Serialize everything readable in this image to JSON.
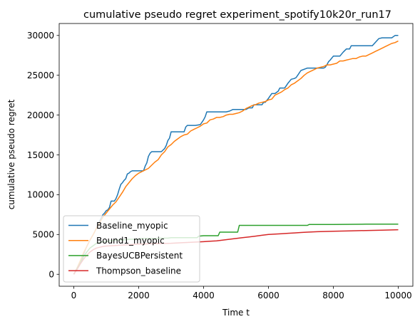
{
  "chart_data": {
    "type": "line",
    "title": "cumulative pseudo regret experiment_spotify10k20r_run17",
    "xlabel": "Time t",
    "ylabel": "cumulative pseudo regret",
    "xlim": [
      -450,
      10450
    ],
    "ylim": [
      -1500,
      31500
    ],
    "xticks": [
      0,
      2000,
      4000,
      6000,
      8000,
      10000
    ],
    "yticks": [
      0,
      5000,
      10000,
      15000,
      20000,
      25000,
      30000
    ],
    "grid": false,
    "legend_position": "lower-left",
    "series": [
      {
        "name": "Baseline_myopic",
        "color": "#1f77b4",
        "x": [
          0,
          100,
          200,
          300,
          400,
          500,
          600,
          700,
          800,
          900,
          950,
          1000,
          1050,
          1100,
          1150,
          1200,
          1250,
          1300,
          1350,
          1400,
          1450,
          1500,
          1550,
          1600,
          1650,
          1700,
          1750,
          1800,
          1850,
          1900,
          1950,
          2000,
          2050,
          2100,
          2150,
          2200,
          2250,
          2300,
          2350,
          2400,
          2450,
          2500,
          2600,
          2700,
          2800,
          2850,
          2900,
          2950,
          3000,
          3400,
          3450,
          3500,
          3700,
          3750,
          3900,
          3950,
          4000,
          4050,
          4100,
          4200,
          4300,
          4350,
          4400,
          4450,
          4500,
          4600,
          4700,
          4800,
          4900,
          5000,
          5100,
          5200,
          5300,
          5400,
          5500,
          5550,
          5600,
          5700,
          5800,
          5850,
          5900,
          6000,
          6100,
          6200,
          6300,
          6350,
          6400,
          6500,
          6600,
          6700,
          6800,
          6850,
          6900,
          7000,
          7200,
          7250,
          7300,
          7400,
          7500,
          7600,
          7700,
          7750,
          7800,
          7850,
          7900,
          8000,
          8200,
          8300,
          8400,
          8500,
          8550,
          8600,
          8800,
          9000,
          9200,
          9400,
          9500,
          9550,
          9600,
          9700,
          9800,
          9900,
          10000
        ],
        "values": [
          0,
          800,
          1600,
          2500,
          3500,
          4300,
          5000,
          5800,
          6700,
          7500,
          7700,
          8000,
          8100,
          8400,
          9200,
          9200,
          9200,
          9500,
          10000,
          10700,
          11300,
          11500,
          11800,
          12000,
          12600,
          12700,
          12900,
          13000,
          13000,
          13000,
          13000,
          13000,
          13000,
          13000,
          13000,
          13600,
          14000,
          14800,
          15200,
          15400,
          15400,
          15400,
          15400,
          15400,
          15800,
          16200,
          16800,
          17100,
          17900,
          17900,
          18500,
          18700,
          18700,
          18700,
          18800,
          19100,
          19400,
          19800,
          20400,
          20400,
          20400,
          20400,
          20400,
          20400,
          20400,
          20400,
          20400,
          20500,
          20700,
          20700,
          20700,
          20700,
          20700,
          20900,
          20900,
          21300,
          21300,
          21300,
          21300,
          21600,
          21600,
          22100,
          22700,
          22700,
          23000,
          23400,
          23400,
          23400,
          24000,
          24500,
          24600,
          24700,
          25000,
          25600,
          25900,
          25900,
          25900,
          25900,
          25900,
          25900,
          25900,
          26000,
          26300,
          26700,
          26900,
          27400,
          27400,
          27900,
          28300,
          28300,
          28700,
          28700,
          28700,
          28700,
          28700,
          29600,
          29700,
          29700,
          29700,
          29700,
          29700,
          30000,
          30000
        ]
      },
      {
        "name": "Bound1_myopic",
        "color": "#ff7f0e",
        "x": [
          0,
          100,
          200,
          300,
          400,
          500,
          600,
          700,
          800,
          900,
          1000,
          1100,
          1200,
          1300,
          1400,
          1500,
          1600,
          1700,
          1800,
          1900,
          2000,
          2100,
          2200,
          2300,
          2400,
          2500,
          2600,
          2700,
          2800,
          2900,
          3000,
          3100,
          3200,
          3300,
          3400,
          3500,
          3600,
          3700,
          3800,
          3900,
          4000,
          4100,
          4200,
          4300,
          4400,
          4500,
          4600,
          4700,
          4800,
          4900,
          5000,
          5100,
          5200,
          5300,
          5400,
          5500,
          5600,
          5700,
          5800,
          5900,
          6000,
          6100,
          6200,
          6300,
          6400,
          6500,
          6600,
          6700,
          6800,
          6900,
          7000,
          7100,
          7200,
          7300,
          7400,
          7500,
          7600,
          7700,
          7800,
          7900,
          8000,
          8100,
          8200,
          8300,
          8400,
          8500,
          8600,
          8700,
          8800,
          8900,
          9000,
          9100,
          9200,
          9300,
          9400,
          9500,
          9600,
          9700,
          9800,
          9900,
          10000
        ],
        "values": [
          0,
          800,
          1700,
          2700,
          3500,
          4300,
          5000,
          5800,
          6500,
          7200,
          7700,
          8200,
          8700,
          9100,
          9700,
          10300,
          11000,
          11500,
          12000,
          12400,
          12700,
          12900,
          13100,
          13300,
          13700,
          14100,
          14400,
          15000,
          15400,
          16000,
          16300,
          16700,
          17000,
          17300,
          17500,
          17600,
          18000,
          18200,
          18400,
          18600,
          18900,
          19000,
          19400,
          19500,
          19700,
          19700,
          19800,
          20000,
          20100,
          20100,
          20200,
          20300,
          20500,
          20800,
          21000,
          21200,
          21300,
          21500,
          21600,
          21700,
          21900,
          22000,
          22500,
          22700,
          22900,
          23200,
          23400,
          23800,
          24000,
          24300,
          24600,
          25000,
          25300,
          25500,
          25700,
          25900,
          26000,
          26100,
          26300,
          26300,
          26400,
          26500,
          26800,
          26800,
          26900,
          27000,
          27100,
          27100,
          27300,
          27400,
          27400,
          27600,
          27800,
          28000,
          28200,
          28400,
          28600,
          28800,
          29000,
          29100,
          29300
        ]
      },
      {
        "name": "BayesUCBPersistent",
        "color": "#2ca02c",
        "x": [
          0,
          100,
          200,
          300,
          400,
          500,
          600,
          700,
          800,
          900,
          1000,
          1100,
          1200,
          1300,
          1400,
          1500,
          1600,
          1700,
          1800,
          1900,
          2000,
          2100,
          2200,
          2300,
          2400,
          2500,
          2600,
          2700,
          2800,
          2900,
          3000,
          3200,
          3400,
          3600,
          3800,
          3850,
          4000,
          4200,
          4300,
          4450,
          4500,
          4800,
          5000,
          5050,
          5100,
          5500,
          6000,
          6500,
          7000,
          7200,
          7250,
          8000,
          9000,
          10000
        ],
        "values": [
          0,
          700,
          1400,
          2200,
          2800,
          3300,
          3600,
          3900,
          4000,
          4100,
          4100,
          4200,
          4200,
          4300,
          4300,
          4300,
          4350,
          4400,
          4400,
          4400,
          4450,
          4500,
          4500,
          4500,
          4500,
          4500,
          4500,
          4550,
          4550,
          4550,
          4600,
          4600,
          4600,
          4600,
          4600,
          4800,
          4850,
          4850,
          4850,
          4850,
          5300,
          5300,
          5300,
          5300,
          6150,
          6150,
          6150,
          6150,
          6150,
          6150,
          6250,
          6250,
          6300,
          6300
        ]
      },
      {
        "name": "Thompson_baseline",
        "color": "#d62728",
        "x": [
          0,
          100,
          200,
          300,
          400,
          500,
          600,
          700,
          800,
          900,
          1000,
          1200,
          1400,
          1600,
          1800,
          2000,
          2500,
          3000,
          3500,
          4000,
          4200,
          4400,
          4600,
          4800,
          5000,
          5200,
          5400,
          5600,
          5800,
          6000,
          6200,
          6400,
          6600,
          6800,
          7000,
          7200,
          7500,
          8000,
          8500,
          9000,
          9500,
          10000
        ],
        "values": [
          0,
          600,
          1300,
          1900,
          2400,
          2800,
          3100,
          3300,
          3400,
          3500,
          3550,
          3600,
          3650,
          3700,
          3750,
          3800,
          3850,
          3900,
          4000,
          4100,
          4150,
          4200,
          4300,
          4400,
          4500,
          4600,
          4700,
          4800,
          4900,
          5000,
          5050,
          5100,
          5150,
          5200,
          5250,
          5300,
          5350,
          5400,
          5450,
          5500,
          5550,
          5600
        ]
      }
    ]
  }
}
